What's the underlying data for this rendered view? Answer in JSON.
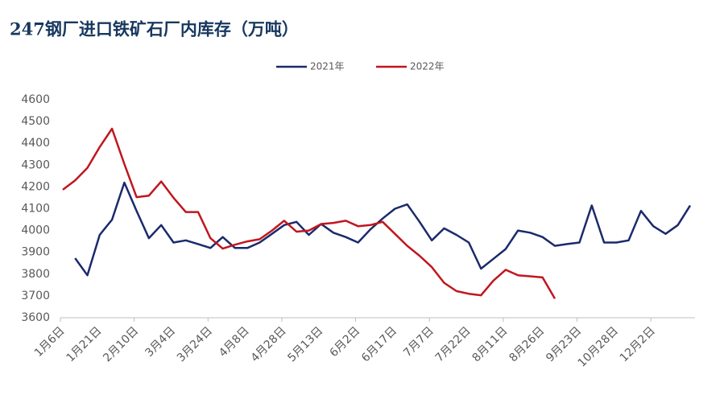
{
  "chart_data": {
    "type": "line",
    "title": "247钢厂进口铁矿石厂内库存（万吨）",
    "categories": [
      "1月6日",
      null,
      null,
      "1月21日",
      null,
      null,
      "2月10日",
      null,
      null,
      "3月4日",
      null,
      null,
      "3月24日",
      null,
      null,
      "4月8日",
      null,
      null,
      "4月28日",
      null,
      null,
      "5月13日",
      null,
      null,
      "6月2日",
      null,
      null,
      "6月17日",
      null,
      null,
      "7月7日",
      null,
      null,
      "7月22日",
      null,
      null,
      "8月11日",
      null,
      null,
      "8月26日",
      null,
      null,
      "9月23日",
      null,
      null,
      "10月28日",
      null,
      null,
      "12月2日",
      null,
      null,
      null
    ],
    "series": [
      {
        "name": "2021年",
        "color": "#1b2a6b",
        "values": [
          null,
          3873,
          3795,
          3980,
          4050,
          4220,
          4090,
          3965,
          4025,
          3945,
          3955,
          3938,
          3920,
          3970,
          3920,
          3920,
          3945,
          3985,
          4025,
          4040,
          3980,
          4030,
          3990,
          3970,
          3945,
          4005,
          4055,
          4100,
          4120,
          4040,
          3955,
          4010,
          3980,
          3945,
          3825,
          3870,
          3915,
          4000,
          3990,
          3970,
          3930,
          3938,
          3945,
          4115,
          3945,
          3945,
          3955,
          4090,
          4020,
          3985,
          4025,
          4115
        ]
      },
      {
        "name": "2022年",
        "color": "#c0161f",
        "values": [
          4187,
          4230,
          4287,
          4383,
          4467,
          4305,
          4153,
          4160,
          4225,
          4150,
          4085,
          4085,
          3965,
          3917,
          3935,
          3950,
          3960,
          4000,
          4045,
          3995,
          4000,
          4030,
          4035,
          4045,
          4020,
          4025,
          4040,
          3985,
          3930,
          3884,
          3832,
          3760,
          3722,
          3710,
          3703,
          3770,
          3820,
          3795,
          3790,
          3785,
          3688,
          null,
          null,
          null,
          null,
          null,
          null,
          null,
          null,
          null,
          null,
          null
        ]
      }
    ],
    "ylim": [
      3600,
      4600
    ],
    "yticks": [
      3600,
      3700,
      3800,
      3900,
      4000,
      4100,
      4200,
      4300,
      4400,
      4500,
      4600
    ],
    "grid": false
  }
}
